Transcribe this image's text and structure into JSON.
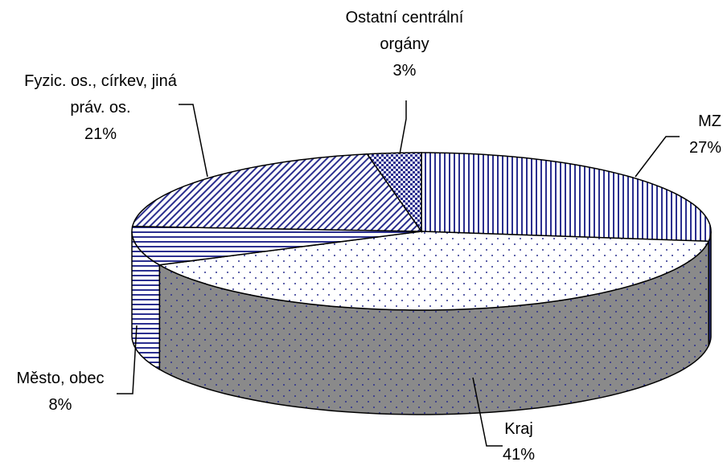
{
  "chart_data": {
    "type": "pie3d",
    "categories": [
      "MZ",
      "Kraj",
      "Město, obec",
      "Fyzic. os., církev, jiná práv. os.",
      "Ostatní centrální orgány"
    ],
    "values": [
      27,
      41,
      8,
      21,
      3
    ],
    "value_labels": [
      "27%",
      "41%",
      "8%",
      "21%",
      "3%"
    ],
    "color": "#2b2f8f"
  }
}
